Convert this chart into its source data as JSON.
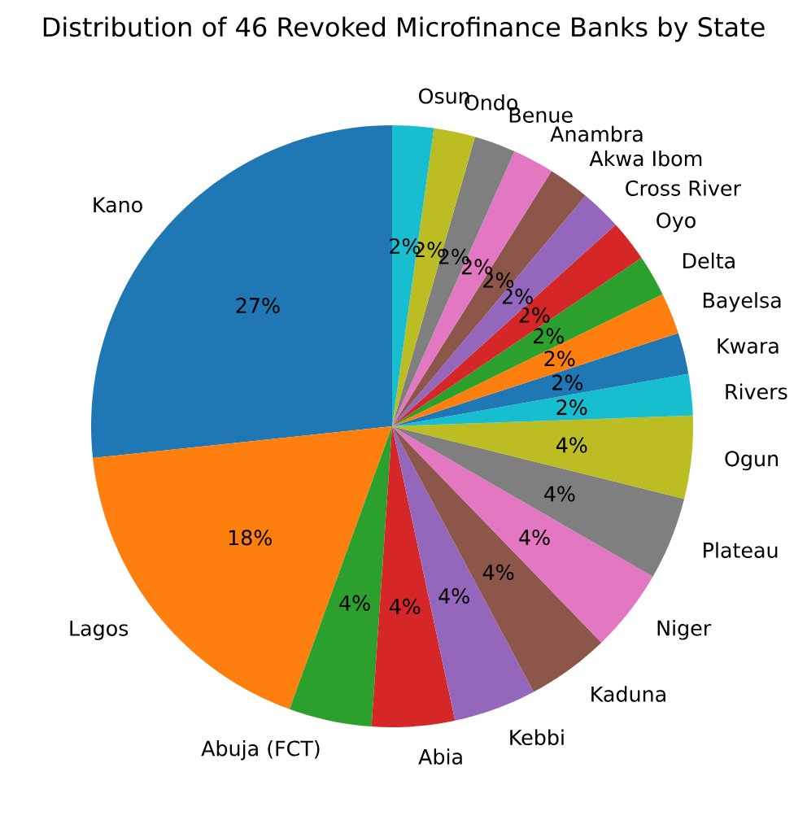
{
  "chart_data": {
    "type": "pie",
    "title": "Distribution of 46 Revoked Microfinance Banks by State",
    "categories": [
      "Kano",
      "Lagos",
      "Abuja (FCT)",
      "Abia",
      "Kebbi",
      "Kaduna",
      "Niger",
      "Plateau",
      "Ogun",
      "Rivers",
      "Kwara",
      "Bayelsa",
      "Delta",
      "Oyo",
      "Cross River",
      "Akwa Ibom",
      "Anambra",
      "Benue",
      "Ondo",
      "Osun"
    ],
    "values": [
      26.67,
      17.77,
      4.44,
      4.44,
      4.44,
      4.44,
      4.44,
      4.44,
      4.44,
      2.22,
      2.22,
      2.22,
      2.22,
      2.22,
      2.22,
      2.22,
      2.22,
      2.22,
      2.22,
      2.22
    ],
    "value_labels": [
      "27%",
      "18%",
      "4%",
      "4%",
      "4%",
      "4%",
      "4%",
      "4%",
      "4%",
      "2%",
      "2%",
      "2%",
      "2%",
      "2%",
      "2%",
      "2%",
      "2%",
      "2%",
      "2%",
      "2%"
    ],
    "colors": [
      "#1f77b4",
      "#ff7f0e",
      "#2ca02c",
      "#d62728",
      "#9467bd",
      "#8c564b",
      "#e377c2",
      "#7f7f7f",
      "#bcbd22",
      "#17becf",
      "#1f77b4",
      "#ff7f0e",
      "#2ca02c",
      "#d62728",
      "#9467bd",
      "#8c564b",
      "#e377c2",
      "#7f7f7f",
      "#bcbd22",
      "#17becf"
    ]
  }
}
